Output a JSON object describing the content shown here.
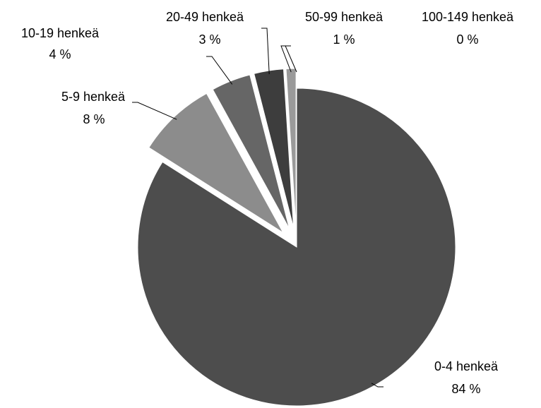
{
  "chart_data": {
    "type": "pie",
    "categories": [
      "0-4 henkeä",
      "5-9 henkeä",
      "10-19 henkeä",
      "20-49 henkeä",
      "50-99 henkeä",
      "100-149 henkeä"
    ],
    "values": [
      84,
      8,
      4,
      3,
      1,
      0
    ],
    "value_labels": [
      "84 %",
      "8 %",
      "4 %",
      "3 %",
      "1 %",
      "0 %"
    ],
    "colors": [
      "#4d4d4d",
      "#8c8c8c",
      "#666666",
      "#3d3d3d",
      "#9a9a9a",
      "#bdbdbd"
    ]
  }
}
